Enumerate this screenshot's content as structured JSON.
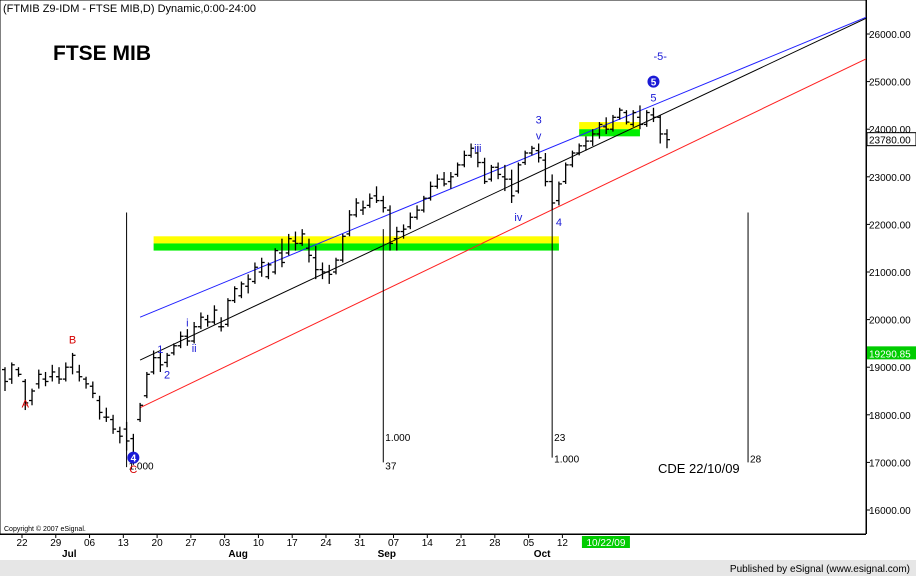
{
  "header": {
    "title": "(FTMIB Z9-IDM - FTSE MIB,D) Dynamic,0:00-24:00"
  },
  "chart_data": {
    "type": "ohlc",
    "title": "FTSE MIB",
    "ylim": [
      15500,
      26500
    ],
    "yticks": [
      "16000.00",
      "17000.00",
      "18000.00",
      "19000.00",
      "20000.00",
      "21000.00",
      "22000.00",
      "23000.00",
      "24000.00",
      "25000.00",
      "26000.00"
    ],
    "ytick_values": [
      16000,
      17000,
      18000,
      19000,
      20000,
      21000,
      22000,
      23000,
      24000,
      25000,
      26000
    ],
    "price_labels": [
      {
        "name": "last-price-label",
        "text": "23780.00",
        "value": 23780
      },
      {
        "name": "reference-price-label",
        "text": "19290.85",
        "value": 19290.85
      }
    ],
    "xaxis": {
      "day_labels": [
        "22",
        "29",
        "06",
        "13",
        "20",
        "27",
        "03",
        "10",
        "17",
        "24",
        "31",
        "07",
        "14",
        "21",
        "28",
        "05",
        "12"
      ],
      "day_label_index": [
        0,
        5,
        10,
        15,
        20,
        25,
        30,
        35,
        40,
        45,
        50,
        55,
        60,
        65,
        70,
        75,
        80
      ],
      "month_labels": [
        "Jul",
        "Aug",
        "Sep",
        "Oct"
      ],
      "month_label_index": [
        7,
        32,
        54,
        77
      ],
      "current_date": "10/22/09",
      "current_date_index": 86
    },
    "bars": [
      [
        18950,
        19000,
        18500,
        18700
      ],
      [
        18750,
        19100,
        18650,
        19050
      ],
      [
        18950,
        19000,
        18800,
        18850
      ],
      [
        18700,
        18750,
        18100,
        18250
      ],
      [
        18300,
        18550,
        18200,
        18500
      ],
      [
        18650,
        18950,
        18550,
        18850
      ],
      [
        18750,
        18900,
        18600,
        18700
      ],
      [
        18800,
        19050,
        18700,
        18900
      ],
      [
        18800,
        19000,
        18650,
        18750
      ],
      [
        18750,
        19100,
        18700,
        19000
      ],
      [
        19000,
        19300,
        18850,
        19250
      ],
      [
        18900,
        19050,
        18700,
        18800
      ],
      [
        18750,
        18800,
        18550,
        18650
      ],
      [
        18600,
        18700,
        18350,
        18450
      ],
      [
        18300,
        18400,
        17900,
        18050
      ],
      [
        17950,
        18150,
        17850,
        17950
      ],
      [
        17900,
        18000,
        17600,
        17700
      ],
      [
        17650,
        17750,
        17400,
        17550
      ],
      [
        17700,
        17850,
        17250,
        17450
      ],
      [
        17500,
        17600,
        16950,
        17050
      ],
      [
        17900,
        18250,
        17850,
        18200
      ],
      [
        18400,
        18900,
        18350,
        18850
      ],
      [
        18900,
        19350,
        18850,
        19200
      ],
      [
        19200,
        19300,
        18900,
        19050
      ],
      [
        19100,
        19300,
        19000,
        19250
      ],
      [
        19300,
        19500,
        19250,
        19450
      ],
      [
        19450,
        19750,
        19400,
        19650
      ],
      [
        19650,
        19800,
        19450,
        19550
      ],
      [
        19550,
        19950,
        19500,
        19850
      ],
      [
        19850,
        20150,
        19800,
        20050
      ],
      [
        20000,
        20100,
        19850,
        19950
      ],
      [
        19950,
        20300,
        19900,
        20200
      ],
      [
        19850,
        20050,
        19750,
        19850
      ],
      [
        19900,
        20450,
        19850,
        20400
      ],
      [
        20400,
        20700,
        20350,
        20650
      ],
      [
        20500,
        20800,
        20450,
        20750
      ],
      [
        20700,
        20950,
        20550,
        20850
      ],
      [
        20800,
        21200,
        20750,
        21100
      ],
      [
        21000,
        21300,
        20900,
        21200
      ],
      [
        20900,
        21200,
        20850,
        21150
      ],
      [
        21000,
        21500,
        20950,
        21450
      ],
      [
        21400,
        21700,
        21100,
        21200
      ],
      [
        21400,
        21800,
        21350,
        21700
      ],
      [
        21650,
        21850,
        21450,
        21600
      ],
      [
        21600,
        21900,
        21550,
        21800
      ],
      [
        21500,
        21700,
        21200,
        21350
      ],
      [
        21300,
        21550,
        20850,
        21050
      ],
      [
        21050,
        21200,
        20850,
        21000
      ],
      [
        21000,
        21150,
        20750,
        20950
      ],
      [
        21000,
        21300,
        20950,
        21250
      ],
      [
        21250,
        21800,
        21200,
        21750
      ],
      [
        21800,
        22300,
        21750,
        22200
      ],
      [
        22200,
        22550,
        22150,
        22450
      ],
      [
        22300,
        22500,
        22200,
        22350
      ],
      [
        22400,
        22650,
        22350,
        22550
      ],
      [
        22600,
        22800,
        22450,
        22500
      ],
      [
        22500,
        22600,
        22250,
        22350
      ],
      [
        22300,
        22400,
        21450,
        21600
      ],
      [
        21700,
        21950,
        21450,
        21850
      ],
      [
        21850,
        22000,
        21700,
        21900
      ],
      [
        21950,
        22250,
        21900,
        22150
      ],
      [
        22150,
        22400,
        22100,
        22300
      ],
      [
        22300,
        22600,
        22250,
        22550
      ],
      [
        22550,
        22900,
        22500,
        22800
      ],
      [
        22800,
        23050,
        22750,
        22950
      ],
      [
        22950,
        23100,
        22800,
        22850
      ],
      [
        22900,
        23100,
        22750,
        23000
      ],
      [
        23050,
        23300,
        23000,
        23250
      ],
      [
        23250,
        23550,
        23200,
        23450
      ],
      [
        23450,
        23700,
        23400,
        23600
      ],
      [
        23500,
        23650,
        23200,
        23300
      ],
      [
        23300,
        23400,
        22850,
        22900
      ],
      [
        22950,
        23250,
        22900,
        23200
      ],
      [
        23200,
        23300,
        22950,
        23050
      ],
      [
        23000,
        23250,
        22700,
        22950
      ],
      [
        22950,
        23150,
        22450,
        22600
      ],
      [
        22700,
        23300,
        22650,
        23250
      ],
      [
        23300,
        23550,
        23250,
        23500
      ],
      [
        23500,
        23650,
        23450,
        23600
      ],
      [
        23550,
        23700,
        23300,
        23400
      ],
      [
        23350,
        23500,
        22800,
        22900
      ],
      [
        22900,
        23050,
        22300,
        22450
      ],
      [
        22500,
        22900,
        22400,
        22850
      ],
      [
        22900,
        23300,
        22850,
        23250
      ],
      [
        23250,
        23550,
        23200,
        23500
      ],
      [
        23500,
        23700,
        23450,
        23650
      ],
      [
        23650,
        23850,
        23550,
        23750
      ],
      [
        23750,
        24000,
        23650,
        23900
      ],
      [
        23900,
        24150,
        23800,
        24100
      ],
      [
        24050,
        24250,
        23900,
        24000
      ],
      [
        24000,
        24300,
        23950,
        24250
      ],
      [
        24250,
        24450,
        24200,
        24400
      ],
      [
        24350,
        24400,
        24100,
        24150
      ],
      [
        24100,
        24400,
        24050,
        24350
      ],
      [
        24250,
        24500,
        24000,
        24100
      ],
      [
        24100,
        24400,
        24050,
        24350
      ],
      [
        24300,
        24450,
        24150,
        24250
      ],
      [
        24250,
        24300,
        23700,
        23900
      ],
      [
        23900,
        24000,
        23600,
        23780
      ]
    ],
    "wave_labels": [
      {
        "text": "A",
        "idx": 3,
        "y": 18150,
        "color": "#d60000"
      },
      {
        "text": "B",
        "idx": 10,
        "y": 19500,
        "color": "#d60000"
      },
      {
        "text": "C",
        "idx": 19,
        "y": 16950,
        "color": "#d60000",
        "dy": 8
      },
      {
        "text": "1",
        "idx": 23,
        "y": 19300,
        "color": "#1a1ad6"
      },
      {
        "text": "2",
        "idx": 24,
        "y": 18850,
        "color": "#1a1ad6",
        "dy": 4
      },
      {
        "text": "i",
        "idx": 27,
        "y": 19850,
        "color": "#1a1ad6"
      },
      {
        "text": "ii",
        "idx": 28,
        "y": 19450,
        "color": "#1a1ad6",
        "dy": 6
      },
      {
        "text": "iii",
        "idx": 70,
        "y": 23600,
        "color": "#1a1ad6",
        "dy": 4
      },
      {
        "text": "iv",
        "idx": 76,
        "y": 22450,
        "color": "#1a1ad6",
        "dy": 18
      },
      {
        "text": "3",
        "idx": 79,
        "y": 23950,
        "color": "#1a1ad6",
        "dy": -8
      },
      {
        "text": "v",
        "idx": 79,
        "y": 23950,
        "color": "#1a1ad6",
        "dy": 8
      },
      {
        "text": "4",
        "idx": 82,
        "y": 22300,
        "color": "#1a1ad6",
        "dy": 16
      },
      {
        "text": "5",
        "idx": 96,
        "y": 24500,
        "color": "#1a1ad6",
        "dy": -4
      },
      {
        "text": "-5-",
        "idx": 97,
        "y": 25450,
        "color": "#1a1ad6",
        "dy": 0
      }
    ],
    "circled_labels": [
      {
        "text": "4",
        "idx": 19,
        "y": 17100
      },
      {
        "text": "5",
        "idx": 96,
        "y": 25000
      }
    ],
    "channel_lines": [
      {
        "name": "upper-channel-line",
        "color": "#2020ff",
        "p1": [
          20,
          20050
        ],
        "p2": [
          130,
          26500
        ]
      },
      {
        "name": "middle-channel-line",
        "color": "#000000",
        "p1": [
          20,
          19150
        ],
        "p2": [
          130,
          26500
        ]
      },
      {
        "name": "lower-channel-line",
        "color": "#ff2020",
        "p1": [
          20,
          18150
        ],
        "p2": [
          130,
          25650
        ]
      }
    ],
    "zones": [
      {
        "name": "support-zone-yellow",
        "color": "#ffff00",
        "idx1": 22,
        "idx2": 82,
        "y1": 21750,
        "y2": 21600
      },
      {
        "name": "support-zone-green",
        "color": "#00ee00",
        "idx1": 22,
        "idx2": 82,
        "y1": 21600,
        "y2": 21450
      },
      {
        "name": "top-zone-yellow",
        "color": "#ffff00",
        "idx1": 85,
        "idx2": 94,
        "y1": 24150,
        "y2": 24000
      },
      {
        "name": "top-zone-green",
        "color": "#00ee00",
        "idx1": 85,
        "idx2": 94,
        "y1": 24000,
        "y2": 23850
      }
    ],
    "vertical_markers": [
      {
        "name": "cycle-marker-start",
        "idx": 18,
        "y_top": 22250,
        "y_bottom": 16900,
        "label": "1.000",
        "label_y": 16850
      },
      {
        "name": "cycle-marker-37",
        "idx": 56,
        "y_top": 21900,
        "y_bottom": 17000,
        "label": "37",
        "label_y": 16850
      },
      {
        "name": "cycle-marker-ratio",
        "idx": 56,
        "y_top": null,
        "y_bottom": null,
        "label": "1.000",
        "label_y": 17450
      },
      {
        "name": "cycle-marker-23",
        "idx": 81,
        "y_top": 22450,
        "y_bottom": 17100,
        "label": "23",
        "label_y": 17450
      },
      {
        "name": "cycle-marker-ratio-2",
        "idx": 81,
        "y_top": null,
        "y_bottom": null,
        "label": "1.000",
        "label_y": 17000
      },
      {
        "name": "cycle-marker-28",
        "idx": 110,
        "y_top": 22250,
        "y_bottom": 17000,
        "label": "28",
        "label_y": 17000
      }
    ],
    "cde_label": "CDE 22/10/09"
  },
  "footer": {
    "copyright": "Copyright © 2007 eSignal.",
    "published": "Published by eSignal (www.esignal.com)"
  }
}
